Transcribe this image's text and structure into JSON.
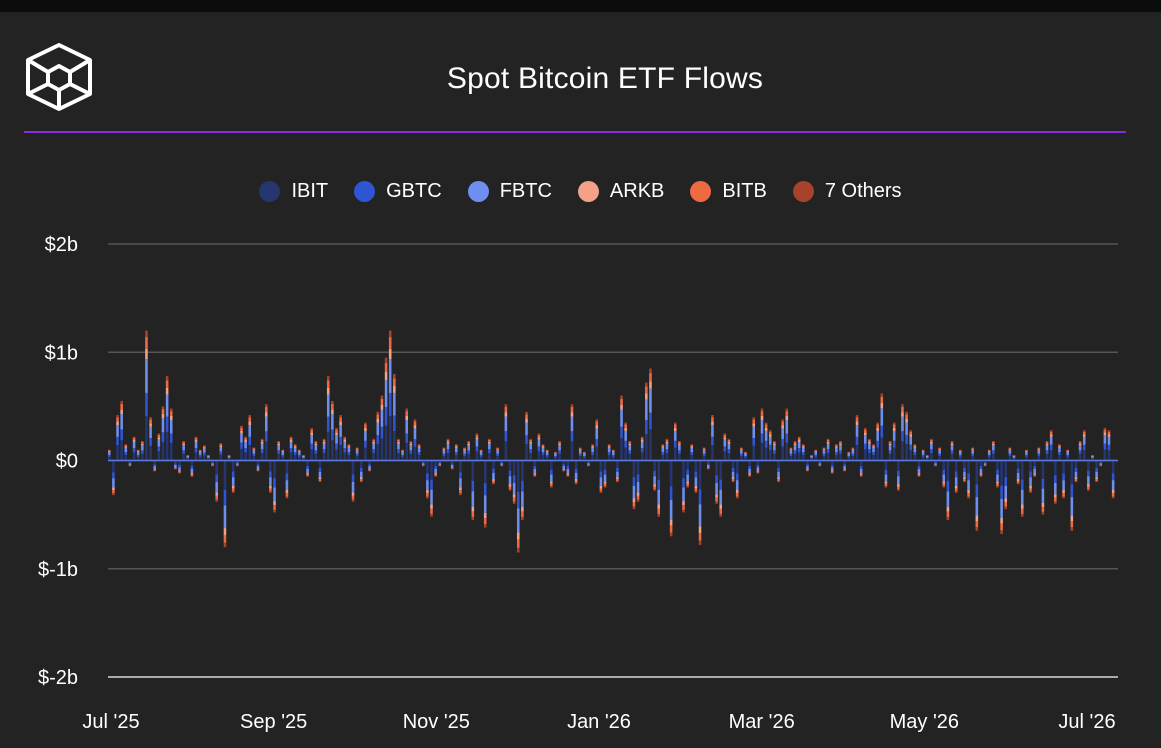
{
  "chart_data": {
    "type": "bar",
    "stacked": true,
    "title": "Spot Bitcoin ETF Flows",
    "y_tick_labels": [
      "$2b",
      "$1b",
      "$0",
      "$-1b",
      "$-2b"
    ],
    "y_tick_values": [
      2,
      1,
      0,
      -1,
      -2
    ],
    "ylim": [
      -2,
      2
    ],
    "y_unit": "billions USD",
    "x_tick_labels": [
      "Jul '25",
      "Sep '25",
      "Nov '25",
      "Jan '26",
      "Mar '26",
      "May '26",
      "Jul '26"
    ],
    "grid": true,
    "legend_position": "top-center",
    "series": [
      {
        "name": "IBIT",
        "color": "#26356e"
      },
      {
        "name": "GBTC",
        "color": "#2f55d4"
      },
      {
        "name": "FBTC",
        "color": "#6f8ff0"
      },
      {
        "name": "ARKB",
        "color": "#f3a187"
      },
      {
        "name": "BITB",
        "color": "#ee6a42"
      },
      {
        "name": "7 Others",
        "color": "#a7432a"
      }
    ],
    "daily_net_flow_billions": [
      0.1,
      -0.32,
      0.42,
      0.55,
      0.15,
      -0.05,
      0.22,
      0.1,
      0.18,
      1.2,
      0.4,
      -0.1,
      0.25,
      0.5,
      0.78,
      0.48,
      -0.08,
      -0.12,
      0.18,
      0.05,
      -0.15,
      0.22,
      0.1,
      0.14,
      0.05,
      -0.05,
      -0.38,
      0.16,
      -0.8,
      0.05,
      -0.3,
      -0.05,
      0.32,
      0.22,
      0.42,
      0.12,
      -0.1,
      0.2,
      0.52,
      -0.3,
      -0.48,
      0.18,
      0.1,
      -0.35,
      0.22,
      0.15,
      0.1,
      0.05,
      -0.15,
      0.3,
      0.18,
      -0.2,
      0.2,
      0.78,
      0.55,
      0.3,
      0.42,
      0.22,
      0.15,
      -0.38,
      0.12,
      -0.2,
      0.35,
      -0.1,
      0.2,
      0.45,
      0.6,
      0.95,
      1.2,
      0.8,
      0.2,
      0.1,
      0.48,
      0.18,
      0.38,
      0.15,
      -0.05,
      -0.35,
      -0.52,
      -0.15,
      -0.05,
      0.12,
      0.2,
      -0.08,
      0.15,
      -0.32,
      0.12,
      0.18,
      -0.55,
      0.25,
      0.1,
      -0.62,
      0.2,
      -0.22,
      0.12,
      -0.05,
      0.52,
      -0.28,
      -0.4,
      -0.85,
      -0.55,
      0.45,
      0.2,
      -0.15,
      0.25,
      0.15,
      0.1,
      -0.25,
      0.08,
      0.18,
      -0.1,
      -0.15,
      0.52,
      -0.22,
      0.12,
      0.08,
      -0.05,
      0.15,
      0.38,
      -0.3,
      -0.25,
      0.15,
      0.1,
      -0.2,
      0.6,
      0.35,
      0.18,
      -0.45,
      -0.38,
      0.22,
      0.72,
      0.85,
      -0.28,
      -0.52,
      0.15,
      0.2,
      -0.7,
      0.35,
      0.18,
      -0.48,
      -0.25,
      0.15,
      -0.3,
      -0.78,
      0.12,
      -0.08,
      0.42,
      -0.4,
      -0.52,
      0.25,
      0.2,
      -0.2,
      -0.35,
      0.12,
      0.08,
      -0.15,
      0.4,
      -0.12,
      0.48,
      0.35,
      0.28,
      0.18,
      -0.2,
      0.38,
      0.48,
      0.12,
      0.18,
      0.22,
      0.15,
      -0.1,
      0.05,
      0.1,
      -0.05,
      0.12,
      0.2,
      -0.12,
      0.15,
      0.18,
      -0.1,
      0.08,
      0.12,
      0.42,
      -0.15,
      0.3,
      0.2,
      0.15,
      0.35,
      0.62,
      -0.25,
      0.18,
      0.35,
      -0.28,
      0.52,
      0.45,
      0.28,
      0.15,
      -0.15,
      0.1,
      0.05,
      0.2,
      -0.05,
      0.12,
      -0.25,
      -0.55,
      0.18,
      -0.3,
      0.1,
      -0.2,
      -0.35,
      0.12,
      -0.65,
      -0.15,
      -0.05,
      0.1,
      0.18,
      -0.25,
      -0.68,
      -0.45,
      0.12,
      0.05,
      -0.22,
      -0.52,
      0.1,
      -0.3,
      -0.15,
      0.12,
      -0.5,
      0.18,
      0.28,
      -0.4,
      0.15,
      -0.35,
      0.1,
      -0.65,
      -0.2,
      0.18,
      0.28,
      -0.28,
      0.05,
      -0.2,
      -0.05,
      0.3,
      0.28,
      -0.35
    ],
    "flow_scale_note": ""
  }
}
